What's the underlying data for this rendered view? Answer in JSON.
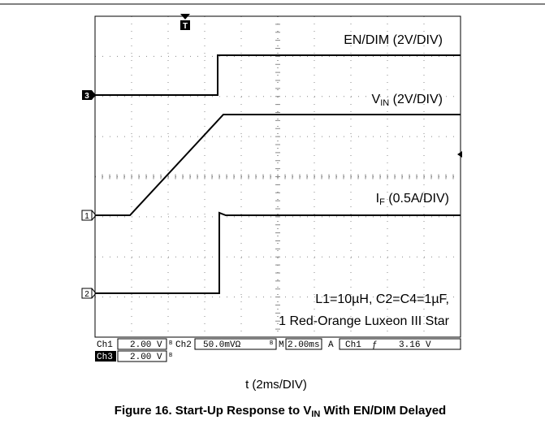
{
  "scope": {
    "marker_trigger": "T",
    "markers": [
      "3",
      "1",
      "2"
    ],
    "labels": {
      "en_dim": "EN/DIM (2V/DIV)",
      "vin": {
        "base": "V",
        "sub": "IN",
        "rest": " (2V/DIV)"
      },
      "if": {
        "base": "I",
        "sub": "F",
        "rest": " (0.5A/DIV)"
      },
      "note_line1": "L1=10µH, C2=C4=1µF,",
      "note_line2": "1 Red-Orange Luxeon III Star"
    },
    "status": {
      "ch1": "Ch1",
      "ch1_scale": "2.00 V",
      "ch1_bw": "B",
      "ch2": "Ch2",
      "ch2_scale": "50.0mVΩ",
      "ch2_bw": "B",
      "m": "M",
      "timebase": "2.00ms",
      "a": "A",
      "trigger": "Ch1  ƒ    3.16 V",
      "ch3": "Ch3",
      "ch3_scale": "2.00 V",
      "ch3_bw": "B"
    }
  },
  "x_label": "t (2ms/DIV)",
  "caption": {
    "base": "Figure 16. Start-Up Response to V",
    "sub": "IN",
    "rest": " With EN/DIM Delayed"
  }
}
